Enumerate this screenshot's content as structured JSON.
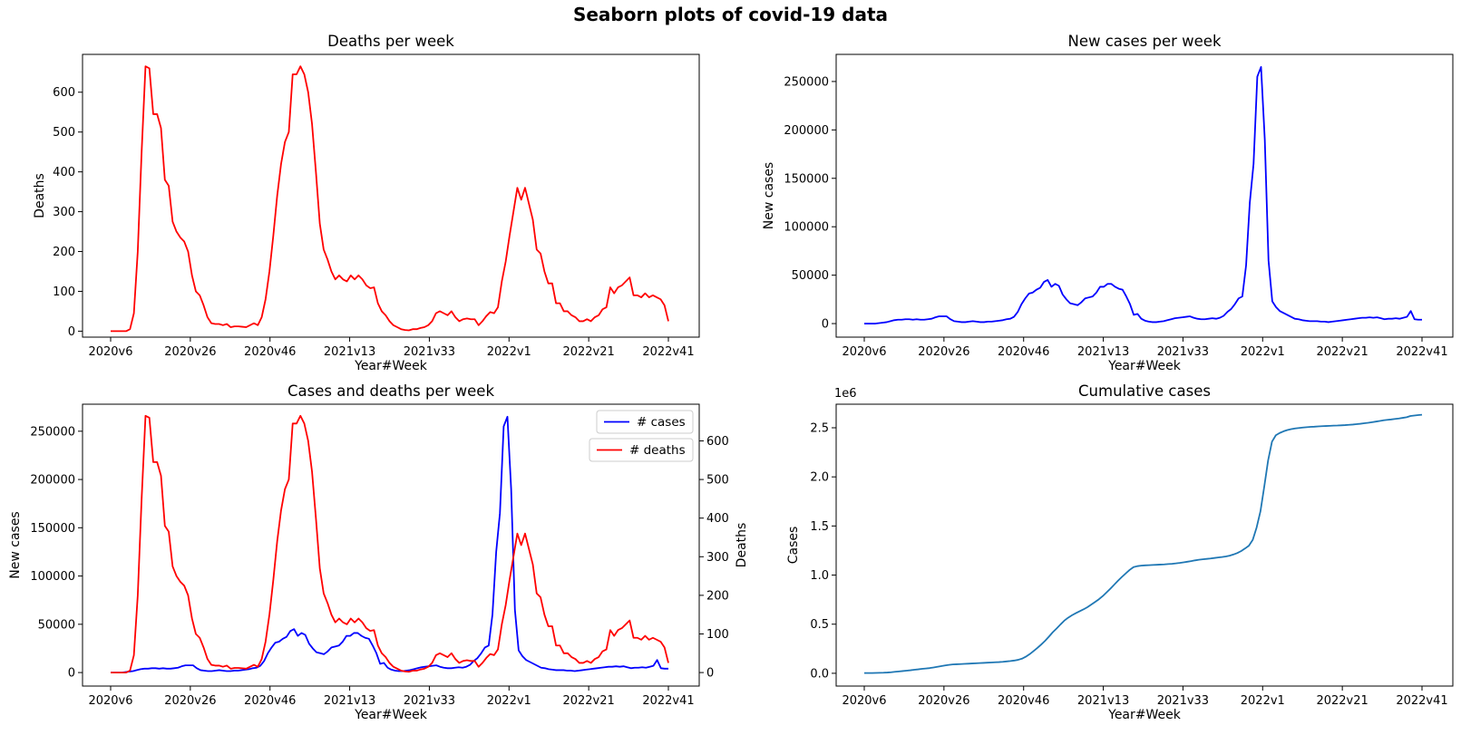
{
  "figure": {
    "title": "Seaborn plots of covid-19 data"
  },
  "chart_data": [
    {
      "type": "line",
      "title": "Deaths per week",
      "xlabel": "Year#Week",
      "ylabel": "Deaths",
      "xticks": [
        "2020v6",
        "2020v26",
        "2020v46",
        "2021v13",
        "2021v33",
        "2022v1",
        "2022v21",
        "2022v41"
      ],
      "ylim": [
        -15,
        695
      ],
      "yticks": [
        0,
        100,
        200,
        300,
        400,
        500,
        600
      ],
      "series": [
        {
          "color": "#ff0000",
          "values": [
            0,
            0,
            0,
            0,
            0,
            5,
            45,
            200,
            450,
            665,
            660,
            545,
            545,
            510,
            380,
            365,
            275,
            250,
            235,
            225,
            200,
            140,
            100,
            90,
            65,
            35,
            20,
            18,
            18,
            15,
            18,
            10,
            12,
            12,
            11,
            10,
            15,
            20,
            15,
            35,
            80,
            150,
            240,
            340,
            420,
            475,
            500,
            645,
            645,
            665,
            645,
            600,
            520,
            400,
            270,
            205,
            180,
            150,
            130,
            140,
            130,
            125,
            140,
            130,
            140,
            130,
            115,
            108,
            110,
            70,
            50,
            40,
            25,
            15,
            10,
            5,
            3,
            2,
            5,
            5,
            8,
            10,
            15,
            25,
            45,
            50,
            45,
            40,
            50,
            35,
            25,
            30,
            32,
            30,
            30,
            15,
            25,
            38,
            48,
            45,
            60,
            125,
            175,
            240,
            300,
            360,
            330,
            360,
            320,
            280,
            205,
            195,
            150,
            120,
            120,
            70,
            70,
            50,
            50,
            40,
            35,
            25,
            25,
            30,
            25,
            35,
            40,
            55,
            60,
            110,
            95,
            110,
            115,
            125,
            135,
            90,
            90,
            85,
            95,
            85,
            90,
            85,
            80,
            65,
            25
          ]
        }
      ]
    },
    {
      "type": "line",
      "title": "New cases per week",
      "xlabel": "Year#Week",
      "ylabel": "New cases",
      "xticks": [
        "2020v6",
        "2020v26",
        "2020v46",
        "2021v13",
        "2021v33",
        "2022v1",
        "2022v21",
        "2022v41"
      ],
      "ylim": [
        -14000,
        278000
      ],
      "yticks": [
        0,
        50000,
        100000,
        150000,
        200000,
        250000
      ],
      "series": [
        {
          "color": "#0000ff",
          "values": [
            0,
            0,
            0,
            0,
            500,
            1000,
            1500,
            2500,
            3500,
            4000,
            4000,
            4500,
            4500,
            4000,
            4500,
            4000,
            4000,
            4500,
            5000,
            6500,
            7500,
            7500,
            7500,
            4500,
            2500,
            2000,
            1500,
            1500,
            2000,
            2500,
            2000,
            1500,
            1500,
            2000,
            2000,
            2500,
            3000,
            3500,
            4500,
            5000,
            7000,
            12000,
            20000,
            26000,
            31000,
            32000,
            35000,
            37000,
            43000,
            45000,
            38000,
            41000,
            39000,
            30000,
            25000,
            21000,
            20000,
            19000,
            22000,
            26000,
            27000,
            28000,
            32000,
            38000,
            38000,
            41000,
            41000,
            38000,
            36000,
            35000,
            28000,
            20000,
            9000,
            10000,
            5000,
            3000,
            2000,
            1500,
            1500,
            2000,
            2500,
            3500,
            4500,
            5500,
            6000,
            6500,
            7000,
            7500,
            6000,
            5000,
            4500,
            4500,
            5000,
            5500,
            5000,
            6000,
            8000,
            12000,
            15000,
            20000,
            26000,
            28000,
            60000,
            125000,
            165000,
            255000,
            265000,
            190000,
            65000,
            23000,
            17000,
            13000,
            11000,
            9000,
            7000,
            5000,
            4500,
            3500,
            3000,
            2500,
            2500,
            2500,
            2000,
            2000,
            1500,
            2000,
            2500,
            3000,
            3500,
            4000,
            4500,
            5000,
            5500,
            6000,
            6000,
            6500,
            6000,
            6500,
            5500,
            4500,
            5000,
            5000,
            5500,
            5000,
            6000,
            7000,
            13000,
            4500,
            4000,
            4000
          ]
        }
      ]
    },
    {
      "type": "line",
      "title": "Cases and deaths per week",
      "xlabel": "Year#Week",
      "ylabel": "New cases",
      "ylabel_right": "Deaths",
      "xticks": [
        "2020v6",
        "2020v26",
        "2020v46",
        "2021v13",
        "2021v33",
        "2022v1",
        "2022v21",
        "2022v41"
      ],
      "ylim": [
        -14000,
        278000
      ],
      "yticks": [
        0,
        50000,
        100000,
        150000,
        200000,
        250000
      ],
      "ylim_right": [
        -35,
        695
      ],
      "yticks_right": [
        0,
        100,
        200,
        300,
        400,
        500,
        600
      ],
      "legend_position": "top-right",
      "legend": [
        "# cases",
        "# deaths"
      ],
      "series": [
        {
          "name": "# cases",
          "axis": "left",
          "color": "#0000ff",
          "ref": 1
        },
        {
          "name": "# deaths",
          "axis": "right",
          "color": "#ff0000",
          "ref": 0
        }
      ]
    },
    {
      "type": "line",
      "title": "Cumulative cases",
      "xlabel": "Year#Week",
      "ylabel": "Cases",
      "y_offset_label": "1e6",
      "xticks": [
        "2020v6",
        "2020v26",
        "2020v46",
        "2021v13",
        "2021v33",
        "2022v1",
        "2022v21",
        "2022v41"
      ],
      "ylim": [
        -0.13,
        2.74
      ],
      "yticks": [
        "0.0",
        "0.5",
        "1.0",
        "1.5",
        "2.0",
        "2.5"
      ],
      "series": [
        {
          "color": "#1f77b4",
          "values": [
            0.003,
            0.003,
            0.003,
            0.004,
            0.005,
            0.006,
            0.008,
            0.011,
            0.015,
            0.019,
            0.023,
            0.027,
            0.031,
            0.036,
            0.04,
            0.045,
            0.049,
            0.053,
            0.059,
            0.066,
            0.073,
            0.08,
            0.086,
            0.09,
            0.092,
            0.094,
            0.096,
            0.098,
            0.1,
            0.102,
            0.104,
            0.106,
            0.108,
            0.11,
            0.112,
            0.114,
            0.117,
            0.121,
            0.125,
            0.13,
            0.137,
            0.149,
            0.169,
            0.195,
            0.226,
            0.258,
            0.293,
            0.33,
            0.373,
            0.418,
            0.456,
            0.497,
            0.536,
            0.566,
            0.591,
            0.612,
            0.632,
            0.651,
            0.673,
            0.699,
            0.726,
            0.754,
            0.786,
            0.824,
            0.862,
            0.903,
            0.944,
            0.982,
            1.018,
            1.053,
            1.081,
            1.091,
            1.096,
            1.099,
            1.101,
            1.103,
            1.105,
            1.107,
            1.109,
            1.112,
            1.115,
            1.119,
            1.124,
            1.13,
            1.136,
            1.142,
            1.15,
            1.156,
            1.161,
            1.165,
            1.169,
            1.174,
            1.179,
            1.184,
            1.19,
            1.198,
            1.21,
            1.225,
            1.245,
            1.271,
            1.299,
            1.359,
            1.484,
            1.649,
            1.904,
            2.169,
            2.359,
            2.424,
            2.447,
            2.464,
            2.477,
            2.486,
            2.493,
            2.498,
            2.502,
            2.506,
            2.509,
            2.511,
            2.514,
            2.516,
            2.518,
            2.52,
            2.522,
            2.523,
            2.525,
            2.527,
            2.53,
            2.533,
            2.537,
            2.541,
            2.546,
            2.551,
            2.557,
            2.563,
            2.569,
            2.576,
            2.581,
            2.585,
            2.59,
            2.595,
            2.601,
            2.607,
            2.62,
            2.625,
            2.629,
            2.633
          ]
        }
      ]
    }
  ]
}
